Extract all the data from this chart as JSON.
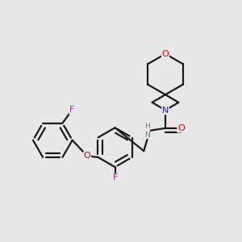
{
  "background_color": "#e8e8e8",
  "bond_color": "#1a1a1a",
  "atom_colors": {
    "O": "#e00000",
    "N": "#2020e0",
    "F": "#cc00cc",
    "NH": "#3a9090",
    "C": "#1a1a1a"
  },
  "lw": 1.6,
  "figsize": [
    3.0,
    3.0
  ],
  "dpi": 100
}
